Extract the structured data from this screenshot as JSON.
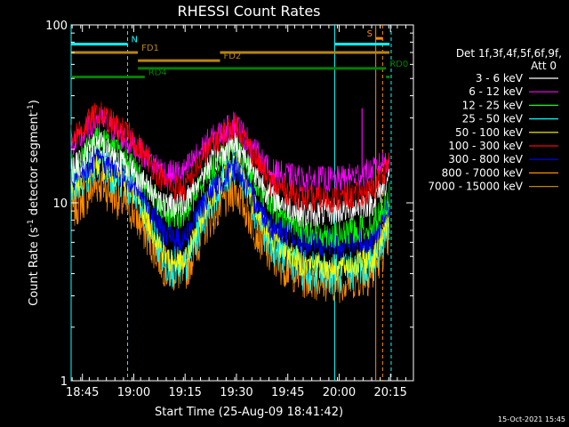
{
  "chart_data": {
    "type": "line",
    "title": "RHESSI Count Rates",
    "xlabel": "Start Time (25-Aug-09 18:41:42)",
    "ylabel_main": "Count Rate (s",
    "ylabel_sup1": "-1",
    "ylabel_mid": " detector segment",
    "ylabel_sup2": "-1",
    "ylabel_end": ")",
    "y_scale": "log",
    "ylim": [
      1,
      100
    ],
    "y_ticks": [
      "1",
      "10",
      "100"
    ],
    "xlim_minutes": [
      0,
      100
    ],
    "x_tick_labels": [
      "18:45",
      "19:00",
      "19:15",
      "19:30",
      "19:45",
      "20:00",
      "20:15"
    ],
    "x_tick_minutes": [
      3.3,
      18.3,
      33.3,
      48.3,
      63.3,
      78.3,
      93.3
    ],
    "legend_placement": "right",
    "legend_header": [
      "Det 1f,3f,4f,5f,6f,9f,",
      "Att 0"
    ],
    "timestamp": "15-Oct-2021 15:45",
    "series": [
      {
        "name": "3 - 6 keV",
        "color": "#ffffff",
        "x_minutes": [
          0,
          8,
          18,
          28,
          33,
          40,
          48,
          58,
          68,
          78,
          88,
          93
        ],
        "values": [
          15,
          22,
          15,
          9.5,
          10,
          16,
          22,
          11,
          8.5,
          9,
          10,
          14
        ]
      },
      {
        "name": "6 - 12 keV",
        "color": "#ff00ff",
        "x_minutes": [
          0,
          8,
          18,
          28,
          33,
          40,
          48,
          58,
          68,
          78,
          88,
          93
        ],
        "values": [
          20,
          30,
          21,
          14.5,
          15,
          22,
          28,
          15,
          13.5,
          13.5,
          15,
          18
        ]
      },
      {
        "name": "12 - 25 keV",
        "color": "#00ff00",
        "x_minutes": [
          0,
          8,
          18,
          28,
          33,
          40,
          48,
          58,
          68,
          78,
          88,
          93
        ],
        "values": [
          16,
          24,
          16,
          8.5,
          8.5,
          15,
          22,
          9.5,
          7,
          6.5,
          7.5,
          11
        ]
      },
      {
        "name": "25 - 50 keV",
        "color": "#00ffff",
        "x_minutes": [
          0,
          8,
          18,
          28,
          33,
          40,
          48,
          58,
          68,
          78,
          88,
          93
        ],
        "values": [
          12,
          17,
          12,
          4.5,
          4.2,
          10,
          17,
          6,
          4.2,
          4,
          4.5,
          8
        ]
      },
      {
        "name": "50 - 100 keV",
        "color": "#ffff00",
        "x_minutes": [
          0,
          8,
          18,
          28,
          33,
          40,
          48,
          58,
          68,
          78,
          88,
          93
        ],
        "values": [
          12,
          17,
          12,
          4.8,
          4.5,
          10.5,
          17,
          6.5,
          4.5,
          4.3,
          4.8,
          8.5
        ]
      },
      {
        "name": "100 - 300 keV",
        "color": "#ff0000",
        "x_minutes": [
          0,
          8,
          18,
          28,
          33,
          40,
          48,
          58,
          68,
          78,
          88,
          93
        ],
        "values": [
          23,
          32,
          23,
          12.5,
          12,
          20,
          28,
          13,
          10.5,
          10.5,
          11.5,
          17
        ]
      },
      {
        "name": "300 - 800 keV",
        "color": "#0000ff",
        "x_minutes": [
          0,
          8,
          18,
          28,
          33,
          40,
          48,
          58,
          68,
          78,
          88,
          93
        ],
        "values": [
          13,
          18,
          13,
          6.5,
          6.2,
          11,
          16,
          7.5,
          6,
          5.8,
          6.2,
          9.5
        ]
      },
      {
        "name": "800 - 7000 keV",
        "color": "#ff8c00",
        "x_minutes": [
          0,
          8,
          18,
          28,
          33,
          40,
          48,
          58,
          68,
          78,
          88,
          93
        ],
        "values": [
          9,
          13,
          9,
          4.2,
          4,
          8,
          12,
          5,
          3.8,
          3.6,
          4,
          6.5
        ]
      },
      {
        "name": "7000 - 15000 keV",
        "color": "#b8860b",
        "x_minutes": [
          0,
          93
        ],
        "values": [
          null,
          null
        ]
      }
    ],
    "state_bars": [
      {
        "label": "N",
        "color": "#00ffff",
        "y": 78,
        "segments": [
          [
            0,
            16.5
          ],
          [
            77,
            93
          ]
        ]
      },
      {
        "label": "FD1",
        "color": "#b8860b",
        "y": 70,
        "segments": [
          [
            0,
            19.5
          ],
          [
            43.5,
            93
          ]
        ]
      },
      {
        "label": "FD2",
        "color": "#b8860b",
        "y": 63,
        "segments": [
          [
            19.5,
            43.5
          ]
        ]
      },
      {
        "label": "RD0",
        "color": "#008000",
        "y": 57,
        "segments": [
          [
            19.5,
            92
          ]
        ]
      },
      {
        "label": "RD4",
        "color": "#008000",
        "y": 51,
        "segments": [
          [
            0,
            21.5
          ],
          [
            92,
            93
          ]
        ]
      },
      {
        "label": "S",
        "color": "#ff8c00",
        "y": 84,
        "segments": [
          [
            89,
            91
          ]
        ]
      }
    ],
    "vlines": [
      {
        "x": 0,
        "color": "#00ffff",
        "style": "solid"
      },
      {
        "x": 16.5,
        "color": "#00ffff",
        "style": "dashed"
      },
      {
        "x": 77,
        "color": "#00ffff",
        "style": "solid"
      },
      {
        "x": 93.5,
        "color": "#00ffff",
        "style": "dashed"
      },
      {
        "x": 89,
        "color": "#ff8c00",
        "style": "solid"
      },
      {
        "x": 91,
        "color": "#ff8c00",
        "style": "dashed"
      }
    ],
    "spike": {
      "x": 85,
      "value": 34,
      "color": "#ff00ff"
    }
  }
}
